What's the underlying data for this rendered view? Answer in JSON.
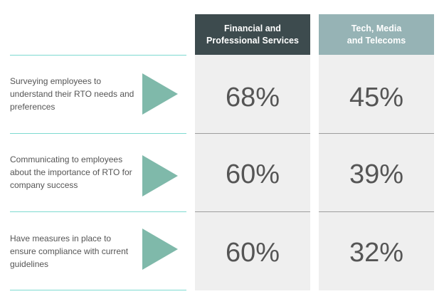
{
  "columns": [
    {
      "line1": "Financial and",
      "line2": "Professional Services",
      "color": "#3d4b4e"
    },
    {
      "line1": "Tech, Media",
      "line2": "and Telecoms",
      "color": "#96b3b5"
    }
  ],
  "rows": [
    {
      "label": "Surveying employees to understand their RTO needs and preferences",
      "financial": "68%",
      "tech": "45%"
    },
    {
      "label": "Communicating to employees about the importance of RTO for company success",
      "financial": "60%",
      "tech": "39%"
    },
    {
      "label": "Have measures in place to ensure compliance with current guidelines",
      "financial": "60%",
      "tech": "32%"
    }
  ],
  "colors": {
    "accent_teal": "#7ddad0",
    "arrow": "#7fb9aa",
    "cell_background": "#efefef"
  },
  "icons": [
    "play-arrow-icon"
  ]
}
